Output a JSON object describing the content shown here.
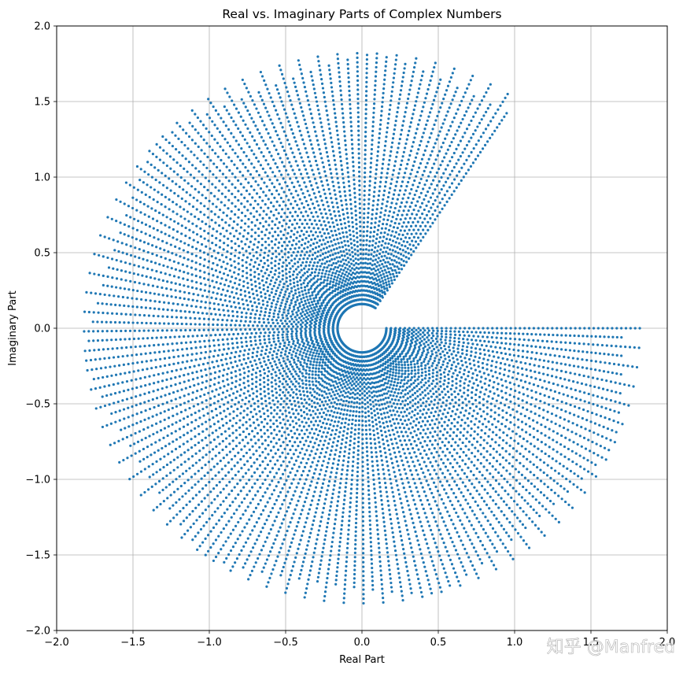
{
  "chart_data": {
    "type": "scatter",
    "title": "Real vs. Imaginary Parts of Complex Numbers",
    "xlabel": "Real Part",
    "ylabel": "Imaginary Part",
    "xlim": [
      -2.0,
      2.0
    ],
    "ylim": [
      -2.0,
      2.0
    ],
    "xticks": [
      -2.0,
      -1.5,
      -1.0,
      -0.5,
      0.0,
      0.5,
      1.0,
      1.5,
      2.0
    ],
    "yticks": [
      -2.0,
      -1.5,
      -1.0,
      -0.5,
      0.0,
      0.5,
      1.0,
      1.5,
      2.0
    ],
    "xtick_labels": [
      "−2.0",
      "−1.5",
      "−1.0",
      "−0.5",
      "0.0",
      "0.5",
      "1.0",
      "1.5",
      "2.0"
    ],
    "ytick_labels": [
      "−2.0",
      "−1.5",
      "−1.0",
      "−0.5",
      "0.0",
      "0.5",
      "1.0",
      "1.5",
      "2.0"
    ],
    "grid": true,
    "marker_color": "#1f77b4",
    "point_pattern": {
      "description_radius_range": [
        0.16,
        1.82
      ],
      "angle_range_radians": [
        0.0,
        5.3
      ],
      "spoke_count": 150
    }
  },
  "watermark": {
    "text": "知乎 @Manfred"
  }
}
